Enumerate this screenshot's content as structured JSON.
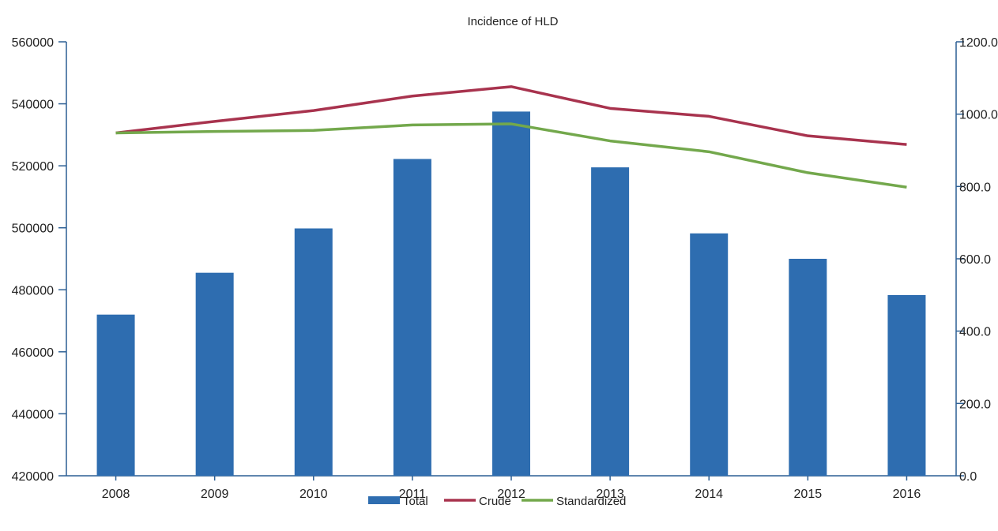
{
  "chart_data": {
    "type": "bar",
    "title": "Incidence of HLD",
    "categories": [
      "2008",
      "2009",
      "2010",
      "2011",
      "2012",
      "2013",
      "2014",
      "2015",
      "2016"
    ],
    "series": [
      {
        "name": "Total",
        "type": "bar",
        "axis": "left",
        "color": "#2e6db0",
        "values": [
          472000,
          485500,
          499800,
          522200,
          537500,
          519500,
          498200,
          490000,
          478300
        ]
      },
      {
        "name": "Crude",
        "type": "line",
        "axis": "right",
        "color": "#a8334e",
        "values": [
          948,
          980,
          1010,
          1050,
          1076,
          1016,
          994,
          940,
          916
        ]
      },
      {
        "name": "Standardized",
        "type": "line",
        "axis": "right",
        "color": "#73a84c",
        "values": [
          948,
          952,
          955,
          970,
          973,
          926,
          896,
          838,
          798
        ]
      }
    ],
    "left_axis": {
      "ylim": [
        420000,
        560000
      ],
      "ticks": [
        "420000",
        "440000",
        "460000",
        "480000",
        "500000",
        "520000",
        "540000",
        "560000"
      ]
    },
    "right_axis": {
      "ylim": [
        0,
        1200
      ],
      "ticks": [
        "0.0",
        "200.0",
        "400.0",
        "600.0",
        "800.0",
        "1000.0",
        "1200.0"
      ]
    },
    "grid": false,
    "legend_position": "bottom"
  }
}
